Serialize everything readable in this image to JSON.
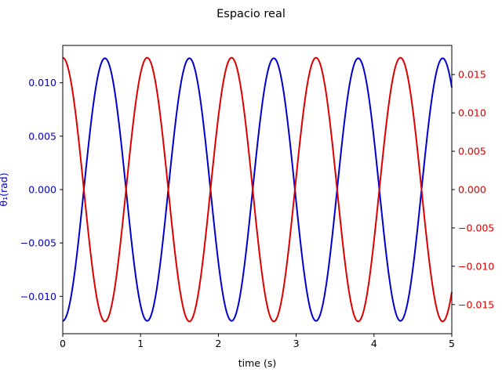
{
  "chart_data": {
    "type": "line",
    "title": "Espacio real",
    "xlabel": "time (s)",
    "ylabel_left": "θ₁(rad)",
    "ylabel_right": "",
    "xlim": [
      0,
      5
    ],
    "ylim_left": [
      -0.0135,
      0.0135
    ],
    "ylim_right": [
      -0.0188,
      0.0188
    ],
    "x_ticks": [
      "0",
      "1",
      "2",
      "3",
      "4",
      "5"
    ],
    "y_left_ticks": [
      "−0.010",
      "−0.005",
      "0.000",
      "0.005",
      "0.010"
    ],
    "y_right_ticks": [
      "−0.015",
      "−0.010",
      "−0.005",
      "0.000",
      "0.005",
      "0.010",
      "0.015"
    ],
    "grid": false,
    "colors": {
      "left_series": "#0000cc",
      "right_series": "#dd0000"
    },
    "series": [
      {
        "axis": "left",
        "form": "-A*cos(2*pi*t/T)",
        "amplitude": 0.0123,
        "period_s": 1.085,
        "x_range": [
          0,
          5
        ]
      },
      {
        "axis": "right",
        "form": "A*cos(2*pi*t/T)",
        "amplitude": 0.0172,
        "period_s": 1.085,
        "x_range": [
          0,
          5
        ]
      }
    ]
  }
}
